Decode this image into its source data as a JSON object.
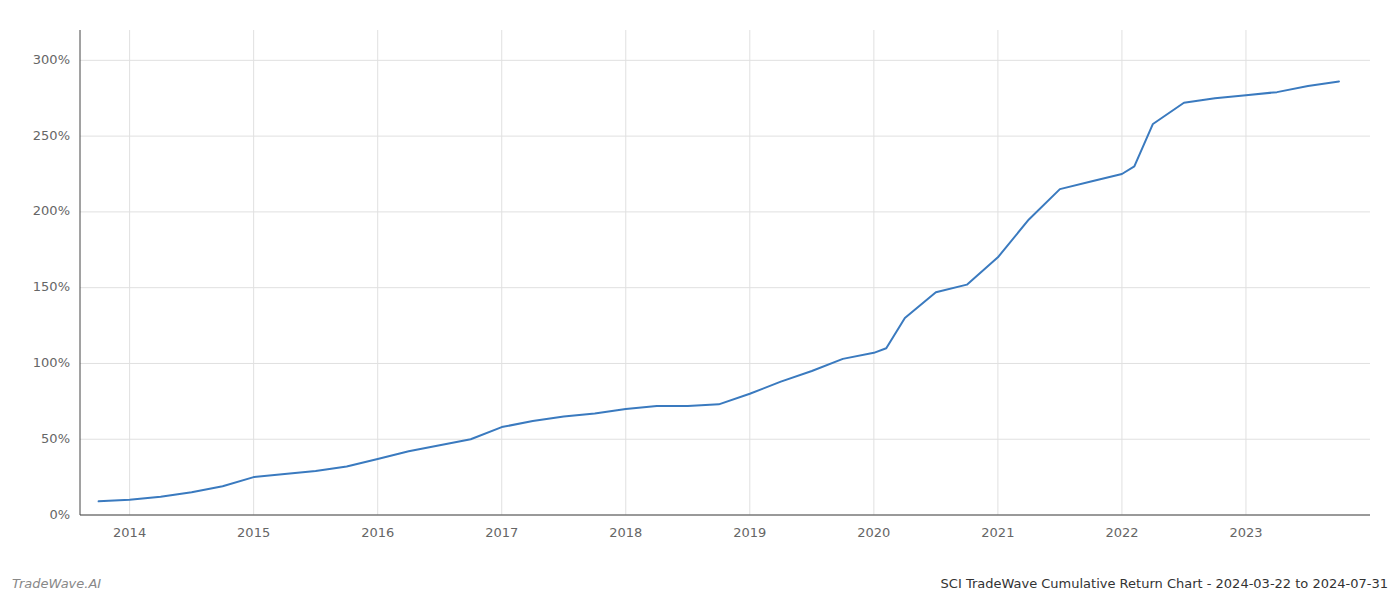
{
  "chart_data": {
    "type": "line",
    "title": "SCI TradeWave Cumulative Return Chart - 2024-03-22 to 2024-07-31",
    "annotations": [
      "TradeWave.AI"
    ],
    "color": "#3a7abf",
    "grid": true,
    "x": [
      2013.75,
      2014.0,
      2014.25,
      2014.5,
      2014.75,
      2015.0,
      2015.25,
      2015.5,
      2015.75,
      2016.0,
      2016.25,
      2016.5,
      2016.75,
      2017.0,
      2017.25,
      2017.5,
      2017.75,
      2018.0,
      2018.25,
      2018.5,
      2018.75,
      2019.0,
      2019.25,
      2019.5,
      2019.75,
      2020.0,
      2020.1,
      2020.25,
      2020.5,
      2020.75,
      2021.0,
      2021.25,
      2021.5,
      2021.75,
      2022.0,
      2022.1,
      2022.25,
      2022.5,
      2022.75,
      2023.0,
      2023.25,
      2023.5,
      2023.75
    ],
    "values": [
      9,
      10,
      12,
      15,
      19,
      25,
      27,
      29,
      32,
      37,
      42,
      46,
      50,
      58,
      62,
      65,
      67,
      70,
      72,
      72,
      73,
      80,
      88,
      95,
      103,
      107,
      110,
      130,
      147,
      152,
      170,
      195,
      215,
      220,
      225,
      230,
      258,
      272,
      275,
      277,
      279,
      283,
      286
    ],
    "xlim": [
      2013.6,
      2024.0
    ],
    "xticks": [
      2014,
      2015,
      2016,
      2017,
      2018,
      2019,
      2020,
      2021,
      2022,
      2023
    ],
    "ylim": [
      0,
      320
    ],
    "yticks": [
      {
        "value": 0,
        "label": "0%"
      },
      {
        "value": 50,
        "label": "50%"
      },
      {
        "value": 100,
        "label": "100%"
      },
      {
        "value": 150,
        "label": "150%"
      },
      {
        "value": 200,
        "label": "200%"
      },
      {
        "value": 250,
        "label": "250%"
      },
      {
        "value": 300,
        "label": "300%"
      }
    ]
  }
}
